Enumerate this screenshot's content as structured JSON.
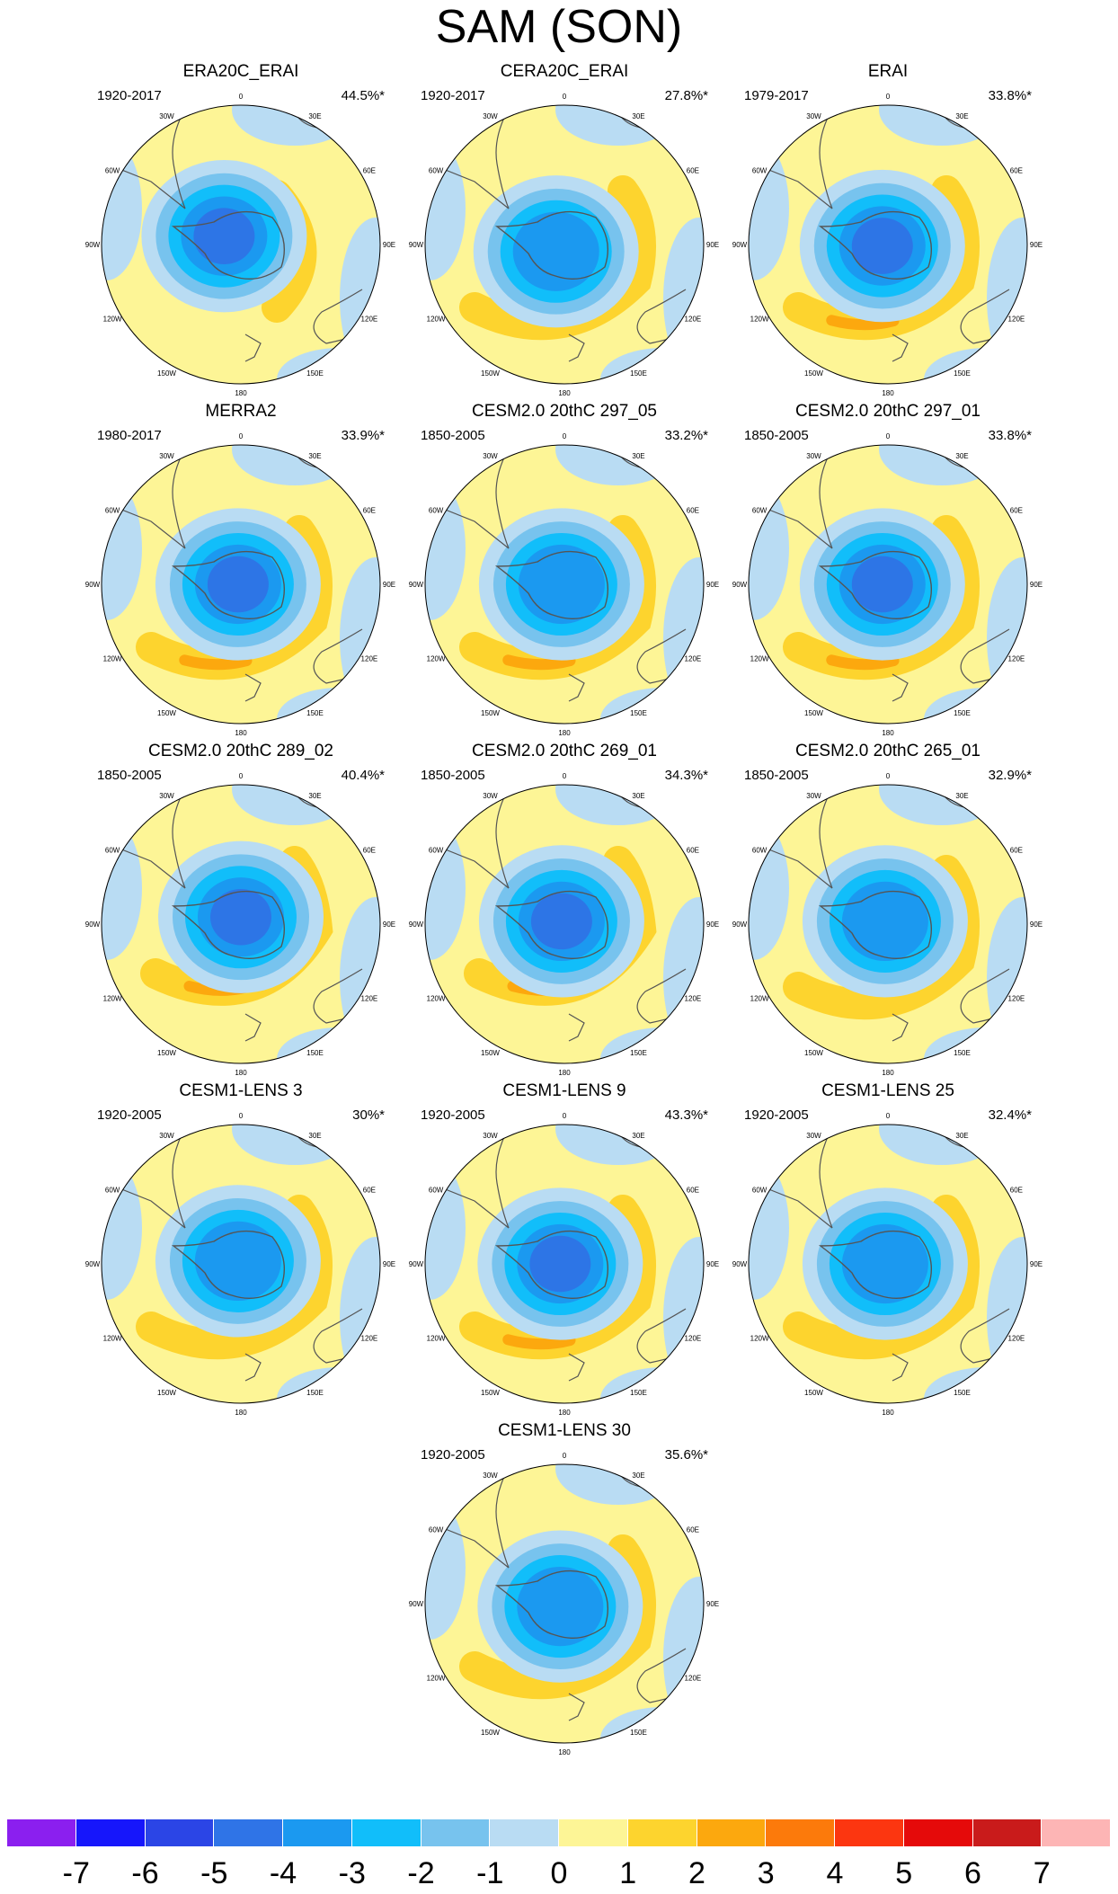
{
  "title": "SAM (SON)",
  "lon_labels": [
    "0",
    "30E",
    "60E",
    "90E",
    "120E",
    "150E",
    "180",
    "150W",
    "120W",
    "90W",
    "60W",
    "30W"
  ],
  "colors": {
    "ocean_blue": "#b9dcf3",
    "base_yellow": "#fdf596",
    "pos1": "#fdd42e",
    "pos2": "#fca80e",
    "neg1": "#77c3ee",
    "neg2": "#11befa",
    "neg3": "#1b99f0",
    "neg4": "#2d75e6",
    "coast": "#555555"
  },
  "panels": [
    {
      "title": "ERA20C_ERAI",
      "period": "1920-2017",
      "variance": "44.5%*",
      "center": {
        "x": -0.12,
        "y": -0.06
      },
      "neg_level": 5,
      "pos_level": 1,
      "pos_arc": "east"
    },
    {
      "title": "CERA20C_ERAI",
      "period": "1920-2017",
      "variance": "27.8%*",
      "center": {
        "x": -0.06,
        "y": 0.05
      },
      "neg_level": 3,
      "pos_level": 1,
      "pos_arc": "south"
    },
    {
      "title": "ERAI",
      "period": "1979-2017",
      "variance": "33.8%*",
      "center": {
        "x": -0.04,
        "y": 0.01
      },
      "neg_level": 4,
      "pos_level": 2,
      "pos_arc": "south"
    },
    {
      "title": "MERRA2",
      "period": "1980-2017",
      "variance": "33.9%*",
      "center": {
        "x": -0.02,
        "y": 0.0
      },
      "neg_level": 4,
      "pos_level": 2,
      "pos_arc": "south"
    },
    {
      "title": "CESM2.0 20thC 297_05",
      "period": "1850-2005",
      "variance": "33.2%*",
      "center": {
        "x": -0.02,
        "y": 0.0
      },
      "neg_level": 3,
      "pos_level": 2,
      "pos_arc": "south"
    },
    {
      "title": "CESM2.0 20thC 297_01",
      "period": "1850-2005",
      "variance": "33.8%*",
      "center": {
        "x": -0.04,
        "y": 0.0
      },
      "neg_level": 4,
      "pos_level": 2,
      "pos_arc": "south"
    },
    {
      "title": "CESM2.0 20thC 289_02",
      "period": "1850-2005",
      "variance": "40.4%*",
      "center": {
        "x": 0.0,
        "y": -0.05
      },
      "neg_level": 4,
      "pos_level": 2,
      "pos_arc": "southeast"
    },
    {
      "title": "CESM2.0 20thC 269_01",
      "period": "1850-2005",
      "variance": "34.3%*",
      "center": {
        "x": -0.02,
        "y": -0.02
      },
      "neg_level": 4,
      "pos_level": 2,
      "pos_arc": "southeast"
    },
    {
      "title": "CESM2.0 20thC 265_01",
      "period": "1850-2005",
      "variance": "32.9%*",
      "center": {
        "x": -0.02,
        "y": -0.02
      },
      "neg_level": 3,
      "pos_level": 1,
      "pos_arc": "south"
    },
    {
      "title": "CESM1-LENS 3",
      "period": "1920-2005",
      "variance": "30%*",
      "center": {
        "x": -0.02,
        "y": -0.02
      },
      "neg_level": 3,
      "pos_level": 1,
      "pos_arc": "south"
    },
    {
      "title": "CESM1-LENS 9",
      "period": "1920-2005",
      "variance": "43.3%*",
      "center": {
        "x": -0.03,
        "y": 0.0
      },
      "neg_level": 4,
      "pos_level": 2,
      "pos_arc": "south"
    },
    {
      "title": "CESM1-LENS 25",
      "period": "1920-2005",
      "variance": "32.4%*",
      "center": {
        "x": -0.02,
        "y": 0.0
      },
      "neg_level": 3,
      "pos_level": 1,
      "pos_arc": "south"
    },
    {
      "title": "CESM1-LENS 30",
      "period": "1920-2005",
      "variance": "35.6%*",
      "center": {
        "x": -0.03,
        "y": 0.02
      },
      "neg_level": 3,
      "pos_level": 1,
      "pos_arc": "south"
    }
  ],
  "colorbar": {
    "colors": [
      "#8b1fef",
      "#1616fb",
      "#2b45e6",
      "#2f74e7",
      "#1b99f0",
      "#11befa",
      "#77c3ee",
      "#b9dcf3",
      "#fdf596",
      "#fdd42e",
      "#fca80e",
      "#fc7a0b",
      "#fc3610",
      "#e50a0a",
      "#c91b1b",
      "#fdb5b5"
    ],
    "tick_labels": [
      "-7",
      "-6",
      "-5",
      "-4",
      "-3",
      "-2",
      "-1",
      "0",
      "1",
      "2",
      "3",
      "4",
      "5",
      "6",
      "7"
    ]
  }
}
